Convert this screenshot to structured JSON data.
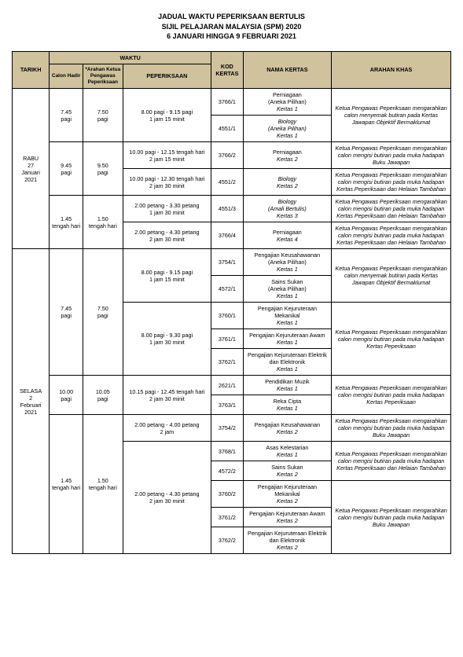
{
  "title": {
    "l1": "JADUAL WAKTU PEPERIKSAAN BERTULIS",
    "l2": "SIJIL PELAJARAN MALAYSIA (SPM) 2020",
    "l3": "6 JANUARI  HINGGA 9 FEBRUARI 2021"
  },
  "headers": {
    "tarikh": "TARIKH",
    "waktu": "WAKTU",
    "calon": "Calon Hadir",
    "arahanKP": "*Arahan Ketua Pengawas Peperiksaan",
    "peperiksaan": "PEPERIKSAAN",
    "kod": "KOD KERTAS",
    "nama": "NAMA KERTAS",
    "khas": "ARAHAN KHAS"
  },
  "day1": {
    "tarikh": "RABU\n27\nJanuari\n2021",
    "s1_calon": "7.45\npagi",
    "s1_arah": "7.50\npagi",
    "s1_pep": "8.00 pagi - 9.15 pagi\n1 jam 15 minit",
    "s1_r1_kod": "3766/1",
    "s1_r1_nama": "Perniagaan\n(Aneka Pilihan)",
    "s1_r1_kert": "Kertas 1",
    "s1_r2_kod": "4551/1",
    "s1_r2_nama": "Biology\n(Aneka Pilihan)",
    "s1_r2_kert": "Kertas 1",
    "s1_khas": "Ketua Pengawas Peperiksaan mengarahkan calon menyemak butiran pada Kertas Jawapan Objektif Bermaklumat",
    "s2_calon": "9.45\npagi",
    "s2_arah": "9.50\npagi",
    "s2_p1": "10.00 pagi - 12.15 tengah hari\n2 jam 15 minit",
    "s2_r1_kod": "3766/2",
    "s2_r1_nama": "Perniagaan",
    "s2_r1_kert": "Kertas 2",
    "s2_r1_khas": "Ketua Pengawas Peperiksaan mengarahkan calon mengisi butiran pada muka hadapan Buku Jawapan",
    "s2_p2": "10.00 pagi - 12.30 tengah hari\n2 jam 30 minit",
    "s2_r2_kod": "4551/2",
    "s2_r2_nama": "Biology",
    "s2_r2_kert": "Kertas 2",
    "s2_r2_khas": "Ketua Pengawas Peperiksaan mengarahkan calon mengisi butiran pada muka hadapan Kertas Peperiksaan dan Helaian Tambahan",
    "s3_calon": "1.45\ntengah hari",
    "s3_arah": "1.50\ntengah hari",
    "s3_p1": "2.00 petang - 3.30 petang\n1 jam 30 minit",
    "s3_r1_kod": "4551/3",
    "s3_r1_nama": "Biology\n(Amali Bertulis)",
    "s3_r1_kert": "Kertas 3",
    "s3_r1_khas": "Ketua Pengawas Peperiksaan mengarahkan calon mengisi butiran pada muka hadapan Kertas Peperiksaan dan Helaian Tambahan",
    "s3_p2": "2.00 petang - 4.30 petang\n2 jam 30 minit",
    "s3_r2_kod": "3766/4",
    "s3_r2_nama": "Perniagaan",
    "s3_r2_kert": "Kertas 4",
    "s3_r2_khas": "Ketua Pengawas Peperiksaan mengarahkan calon mengisi butiran pada muka hadapan Kertas Peperiksaan dan Helaian Tambahan"
  },
  "day2": {
    "tarikh": "SELASA\n2\nFebruari\n2021",
    "s1_calon": "7.45\npagi",
    "s1_arah": "7.50\npagi",
    "s1_p1": "8.00 pagi - 9.15 pagi\n1 jam 15 minit",
    "r1_kod": "3754/1",
    "r1_nama": "Pengajian Keusahawanan\n(Aneka Pilihan)",
    "r1_kert": "Kertas 1",
    "r2_kod": "4572/1",
    "r2_nama": "Sains Sukan\n(Aneka Pilihan)",
    "r2_kert": "Kertas 1",
    "s1_khas1": "Ketua Pengawas Peperiksaan mengarahkan calon menyemak butiran pada Kertas Jawapan Objektif Bermaklumat",
    "s1_p2": "8.00 pagi - 9.30 pagi\n1 jam 30 minit",
    "r3_kod": "3760/1",
    "r3_nama": "Pengajian Kejuruteraan Mekanikal",
    "r3_kert": "Kertas 1",
    "r4_kod": "3761/1",
    "r4_nama": "Pengajian Kejuruteraan Awam",
    "r4_kert": "Kertas 1",
    "r5_kod": "3762/1",
    "r5_nama": "Pengajian Kejuruteraan Elektrik dan Elektronik",
    "r5_kert": "Kertas 1",
    "s1_khas2": "Ketua Pengawas Peperiksaan mengarahkan calon mengisi butiran pada muka hadapan Kertas Peperiksaan",
    "s2_calon": "10.00\npagi",
    "s2_arah": "10.05\npagi",
    "s2_p": "10.15 pagi - 12.45 tengah hari\n2 jam 30 minit",
    "r6_kod": "2621/1",
    "r6_nama": "Pendidikan Muzik",
    "r6_kert": "Kertas 1",
    "r7_kod": "3763/1",
    "r7_nama": "Reka Cipta",
    "r7_kert": "Kertas 1",
    "s2_khas": "Ketua Pengawas Peperiksaan mengarahkan calon mengisi butiran pada muka hadapan Kertas Peperiksaan",
    "s3_calon": "1.45\ntengah hari",
    "s3_arah": "1.50\ntengah hari",
    "s3_p1": "2.00 petang - 4.00 petang\n2 jam",
    "r8_kod": "3754/2",
    "r8_nama": "Pengajian Keusahawanan",
    "r8_kert": "Kertas 2",
    "s3_khas1": "Ketua Pengawas Peperiksaan mengarahkan calon mengisi butiran pada muka hadapan Buku Jawapan",
    "s3_p2": "2.00 petang - 4.30 petang\n2 jam 30 minit",
    "r9_kod": "3768/1",
    "r9_nama": "Asas Kelestarian",
    "r9_kert": "Kertas 1",
    "r10_kod": "4572/2",
    "r10_nama": "Sains Sukan",
    "r10_kert": "Kertas 2",
    "s3_khas2": "Ketua Pengawas Peperiksaan mengarahkan calon mengisi butiran pada muka hadapan Kertas Peperiksaan dan Helaian Tambahan",
    "r11_kod": "3760/2",
    "r11_nama": "Pengajian Kejuruteraan Mekanikal",
    "r11_kert": "Kertas 2",
    "r12_kod": "3761/2",
    "r12_nama": "Pengajian Kejuruteraan Awam",
    "r12_kert": "Kertas 2",
    "r13_kod": "3762/2",
    "r13_nama": "Pengajian Kejuruteraan Elektrik dan Elektronik",
    "r13_kert": "Kertas 2",
    "s3_khas3": "Ketua Pengawas Peperiksaan mengarahkan calon mengisi butiran pada muka hadapan Buku Jawapan"
  }
}
